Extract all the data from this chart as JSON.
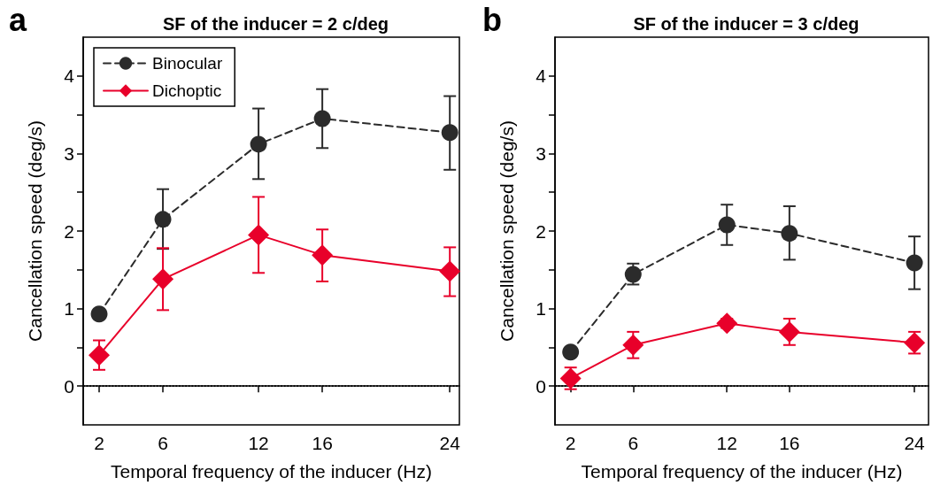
{
  "chart_data": [
    {
      "type": "line",
      "title": "SF of the inducer = 2 c/deg",
      "xlabel": "Temporal frequency of the inducer (Hz)",
      "ylabel": "Cancellation speed (deg/s)",
      "annotations": [
        "a"
      ],
      "x": [
        2,
        6,
        12,
        16,
        24
      ],
      "xlim": [
        1,
        24.6
      ],
      "xticks": [
        2,
        6,
        12,
        16,
        24
      ],
      "ylim": [
        -0.5,
        4.5
      ],
      "yticks": [
        0,
        {
          "value": 0.5,
          "label": null
        },
        1,
        {
          "value": 1.5,
          "label": null
        },
        2,
        {
          "value": 2.5,
          "label": null
        },
        3,
        {
          "value": 3.5,
          "label": null
        },
        4
      ],
      "series": [
        {
          "name": "Binocular",
          "color": "#2b2b2b",
          "marker": "circle",
          "line_style": "dashed",
          "values": [
            0.93,
            2.15,
            3.12,
            3.45,
            3.27
          ],
          "errors": [
            null,
            [
              1.77,
              2.54
            ],
            [
              2.67,
              3.58
            ],
            [
              3.07,
              3.83
            ],
            [
              2.79,
              3.74
            ]
          ]
        },
        {
          "name": "Dichoptic",
          "color": "#e8002a",
          "marker": "diamond",
          "line_style": "solid",
          "values": [
            0.4,
            1.38,
            1.95,
            1.69,
            1.48
          ],
          "errors": [
            [
              0.21,
              0.59
            ],
            [
              0.98,
              1.78
            ],
            [
              1.46,
              2.44
            ],
            [
              1.35,
              2.02
            ],
            [
              1.16,
              1.79
            ]
          ]
        }
      ],
      "ref_lines": [
        {
          "axis": "y",
          "value": 0,
          "line_style": "dotted",
          "color": "#000000"
        }
      ],
      "legend": "top left",
      "grid": false
    },
    {
      "type": "line",
      "title": "SF of the inducer = 3 c/deg",
      "xlabel": "Temporal frequency of the inducer (Hz)",
      "ylabel": "Cancellation speed (deg/s)",
      "annotations": [
        "b"
      ],
      "x": [
        2,
        6,
        12,
        16,
        24
      ],
      "xlim": [
        1,
        24.9
      ],
      "xticks": [
        2,
        6,
        12,
        16,
        24
      ],
      "ylim": [
        -0.5,
        4.5
      ],
      "yticks": [
        0,
        {
          "value": 0.5,
          "label": null
        },
        1,
        {
          "value": 1.5,
          "label": null
        },
        2,
        {
          "value": 2.5,
          "label": null
        },
        3,
        {
          "value": 3.5,
          "label": null
        },
        4
      ],
      "series": [
        {
          "color": "#2b2b2b",
          "marker": "circle",
          "line_style": "dashed",
          "values": [
            0.44,
            1.44,
            2.08,
            1.97,
            1.59
          ],
          "errors": [
            null,
            [
              1.31,
              1.58
            ],
            [
              1.82,
              2.34
            ],
            [
              1.63,
              2.32
            ],
            [
              1.25,
              1.93
            ]
          ]
        },
        {
          "color": "#e8002a",
          "marker": "diamond",
          "line_style": "solid",
          "values": [
            0.1,
            0.53,
            0.81,
            0.7,
            0.56
          ],
          "errors": [
            [
              -0.04,
              0.24
            ],
            [
              0.36,
              0.7
            ],
            [
              0.75,
              0.87
            ],
            [
              0.53,
              0.87
            ],
            [
              0.42,
              0.7
            ]
          ]
        }
      ],
      "ref_lines": [
        {
          "axis": "y",
          "value": 0,
          "line_style": "dotted",
          "color": "#000000"
        }
      ],
      "legend": false,
      "grid": false
    }
  ]
}
